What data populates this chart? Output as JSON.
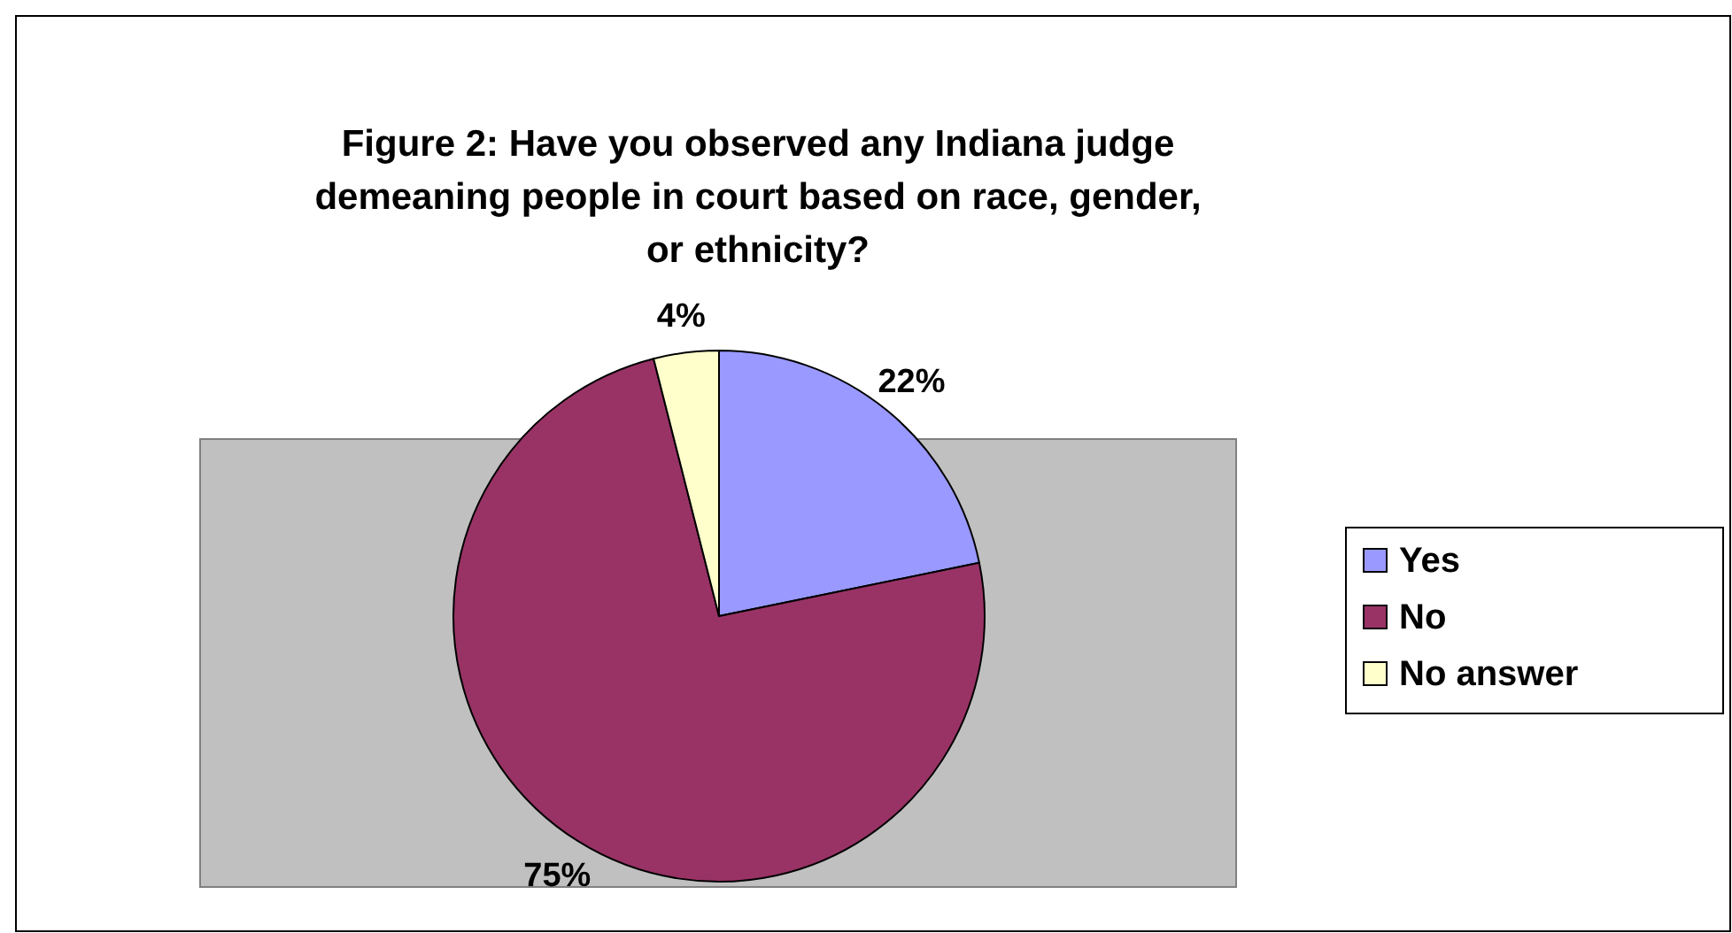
{
  "chart_data": {
    "type": "pie",
    "title": "Figure 2: Have you observed any Indiana judge demeaning people in court based on race, gender, or ethnicity?",
    "categories": [
      "Yes",
      "No",
      "No answer"
    ],
    "values": [
      22,
      75,
      4
    ],
    "value_labels": [
      "22%",
      "75%",
      "4%"
    ],
    "colors": [
      "#9999ff",
      "#993366",
      "#ffffcc"
    ],
    "legend": "right"
  }
}
